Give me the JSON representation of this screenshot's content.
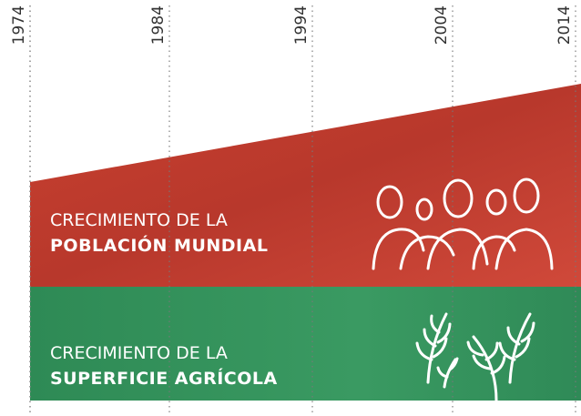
{
  "timeline": {
    "years": [
      "1974",
      "1984",
      "1994",
      "2004",
      "2014"
    ]
  },
  "bands": [
    {
      "line1": "CRECIMIENTO DE LA",
      "line2": "POBLACIÓN MUNDIAL"
    },
    {
      "line1": "CRECIMIENTO DE LA",
      "line2": "SUPERFICIE AGRÍCOLA"
    }
  ]
}
